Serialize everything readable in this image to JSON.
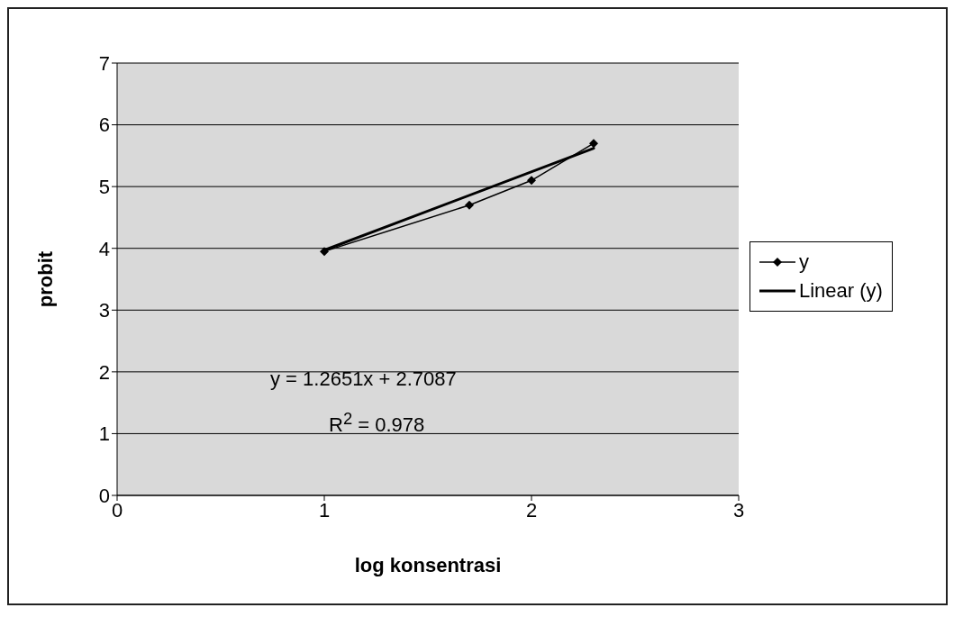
{
  "chart_data": {
    "type": "line",
    "xlabel": "log konsentrasi",
    "ylabel": "probit",
    "xlim": [
      0,
      3
    ],
    "xticks": [
      0,
      1,
      2,
      3
    ],
    "ylim": [
      0,
      7
    ],
    "yticks": [
      0,
      1,
      2,
      3,
      4,
      5,
      6,
      7
    ],
    "grid": "y",
    "legend": "right",
    "line_style": "solid",
    "series": [
      {
        "name": "y",
        "marker": "diamond",
        "color": "#000000",
        "x": [
          1,
          1.7,
          2,
          2.3
        ],
        "values": [
          3.95,
          4.7,
          5.1,
          5.7
        ]
      },
      {
        "name": "Linear (y)",
        "marker": "none",
        "color": "#000000",
        "x": [
          1,
          2.3
        ],
        "values": [
          3.97,
          5.62
        ]
      }
    ],
    "annotations": [
      "y = 1.2651x + 2.7087",
      "R$^{2}$ = 0.978"
    ]
  }
}
